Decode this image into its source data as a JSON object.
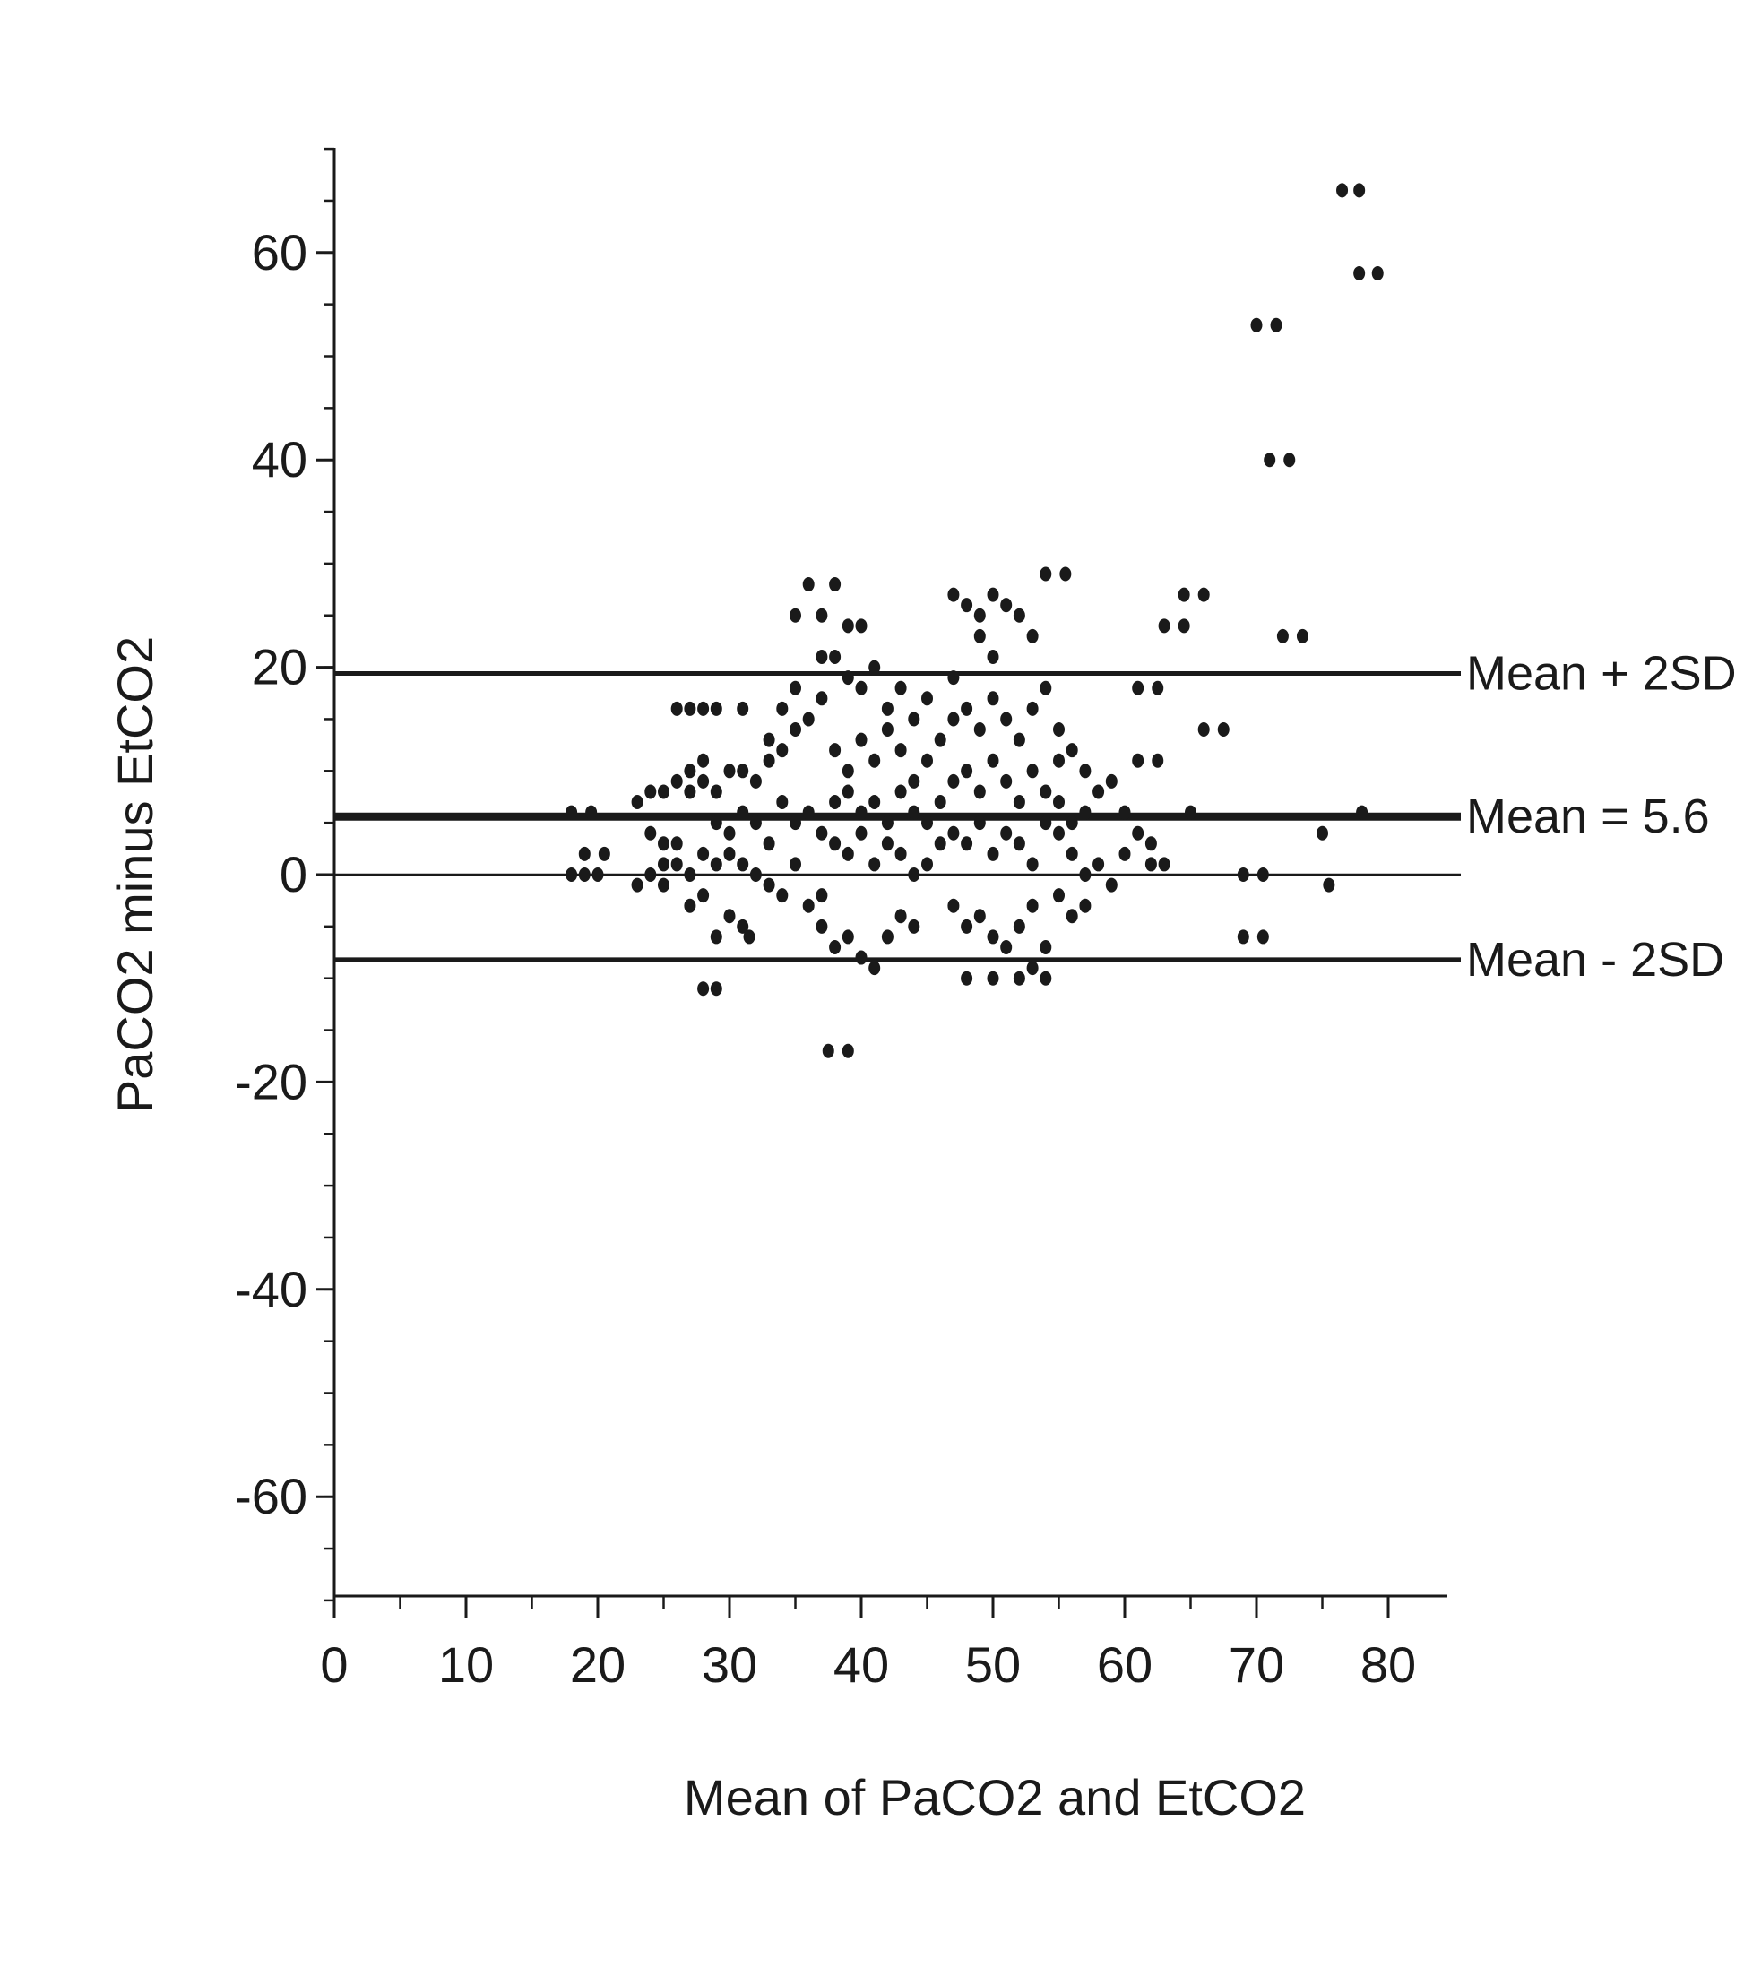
{
  "chart_data": {
    "type": "scatter",
    "title": "",
    "xlabel": "Mean of PaCO2 and EtCO2",
    "ylabel": "PaCO2 minus EtCO2",
    "xlim": [
      0,
      85
    ],
    "ylim": [
      -70,
      70
    ],
    "x_ticks": [
      0,
      10,
      20,
      30,
      40,
      50,
      60,
      70,
      80
    ],
    "y_ticks": [
      -60,
      -40,
      -20,
      0,
      20,
      40,
      60
    ],
    "grid": false,
    "colors": {
      "points": "#1a1a1a",
      "lines": "#1a1a1a"
    },
    "reference_lines": [
      {
        "label": "Mean + 2SD",
        "y": 19.4
      },
      {
        "label": "Mean = 5.6",
        "y": 5.6
      },
      {
        "label": "Mean - 2SD",
        "y": -8.2
      }
    ],
    "series": [
      {
        "points": [
          [
            18,
            6
          ],
          [
            19.5,
            6
          ],
          [
            20,
            0
          ],
          [
            19,
            0
          ],
          [
            18,
            0
          ],
          [
            19,
            2
          ],
          [
            20.5,
            2
          ],
          [
            23,
            7
          ],
          [
            24,
            8
          ],
          [
            25,
            8
          ],
          [
            26,
            16
          ],
          [
            27,
            16
          ],
          [
            28,
            16
          ],
          [
            29,
            16
          ],
          [
            31,
            16
          ],
          [
            26,
            9
          ],
          [
            27,
            8
          ],
          [
            27,
            10
          ],
          [
            28,
            9
          ],
          [
            28,
            11
          ],
          [
            29,
            8
          ],
          [
            30,
            10
          ],
          [
            31,
            10
          ],
          [
            24,
            4
          ],
          [
            25,
            3
          ],
          [
            26,
            3
          ],
          [
            24,
            0
          ],
          [
            25,
            1
          ],
          [
            26,
            1
          ],
          [
            27,
            0
          ],
          [
            28,
            2
          ],
          [
            29,
            1
          ],
          [
            23,
            -1
          ],
          [
            25,
            -1
          ],
          [
            27,
            -3
          ],
          [
            28,
            -2
          ],
          [
            29,
            -6
          ],
          [
            30,
            -4
          ],
          [
            31,
            -5
          ],
          [
            31.5,
            -6
          ],
          [
            28,
            -11
          ],
          [
            29,
            -11
          ],
          [
            29,
            5
          ],
          [
            30,
            4
          ],
          [
            31,
            6
          ],
          [
            32,
            5
          ],
          [
            33,
            3
          ],
          [
            34,
            7
          ],
          [
            35,
            5
          ],
          [
            36,
            6
          ],
          [
            37,
            4
          ],
          [
            30,
            2
          ],
          [
            31,
            1
          ],
          [
            32,
            0
          ],
          [
            33,
            -1
          ],
          [
            34,
            -2
          ],
          [
            35,
            1
          ],
          [
            36,
            -3
          ],
          [
            37,
            -2
          ],
          [
            32,
            9
          ],
          [
            33,
            11
          ],
          [
            34,
            12
          ],
          [
            35,
            14
          ],
          [
            36,
            15
          ],
          [
            37,
            17
          ],
          [
            35,
            18
          ],
          [
            33,
            13
          ],
          [
            34,
            16
          ],
          [
            35,
            25
          ],
          [
            36,
            28
          ],
          [
            37,
            25
          ],
          [
            38,
            28
          ],
          [
            37,
            21
          ],
          [
            38,
            21
          ],
          [
            39,
            19
          ],
          [
            39,
            24
          ],
          [
            40,
            24
          ],
          [
            38,
            12
          ],
          [
            39,
            10
          ],
          [
            40,
            13
          ],
          [
            41,
            11
          ],
          [
            42,
            14
          ],
          [
            43,
            12
          ],
          [
            44,
            9
          ],
          [
            45,
            11
          ],
          [
            38,
            7
          ],
          [
            39,
            8
          ],
          [
            40,
            6
          ],
          [
            41,
            7
          ],
          [
            42,
            5
          ],
          [
            43,
            8
          ],
          [
            44,
            6
          ],
          [
            45,
            5
          ],
          [
            46,
            7
          ],
          [
            38,
            3
          ],
          [
            39,
            2
          ],
          [
            40,
            4
          ],
          [
            41,
            1
          ],
          [
            42,
            3
          ],
          [
            43,
            2
          ],
          [
            44,
            0
          ],
          [
            45,
            1
          ],
          [
            46,
            3
          ],
          [
            37,
            -5
          ],
          [
            38,
            -7
          ],
          [
            39,
            -6
          ],
          [
            40,
            -8
          ],
          [
            41,
            -9
          ],
          [
            42,
            -6
          ],
          [
            43,
            -4
          ],
          [
            44,
            -5
          ],
          [
            37.5,
            -17
          ],
          [
            39,
            -17
          ],
          [
            40,
            18
          ],
          [
            41,
            20
          ],
          [
            42,
            16
          ],
          [
            43,
            18
          ],
          [
            44,
            15
          ],
          [
            45,
            17
          ],
          [
            46,
            13
          ],
          [
            47,
            19
          ],
          [
            47,
            27
          ],
          [
            48,
            26
          ],
          [
            49,
            25
          ],
          [
            50,
            27
          ],
          [
            51,
            26
          ],
          [
            52,
            25
          ],
          [
            53,
            23
          ],
          [
            49,
            23
          ],
          [
            50,
            21
          ],
          [
            47,
            15
          ],
          [
            48,
            16
          ],
          [
            49,
            14
          ],
          [
            50,
            17
          ],
          [
            51,
            15
          ],
          [
            52,
            13
          ],
          [
            53,
            16
          ],
          [
            54,
            18
          ],
          [
            47,
            9
          ],
          [
            48,
            10
          ],
          [
            49,
            8
          ],
          [
            50,
            11
          ],
          [
            51,
            9
          ],
          [
            52,
            7
          ],
          [
            53,
            10
          ],
          [
            54,
            8
          ],
          [
            55,
            11
          ],
          [
            47,
            4
          ],
          [
            48,
            3
          ],
          [
            49,
            5
          ],
          [
            50,
            2
          ],
          [
            51,
            4
          ],
          [
            52,
            3
          ],
          [
            53,
            1
          ],
          [
            54,
            5
          ],
          [
            55,
            4
          ],
          [
            47,
            -3
          ],
          [
            48,
            -5
          ],
          [
            49,
            -4
          ],
          [
            50,
            -6
          ],
          [
            51,
            -7
          ],
          [
            52,
            -5
          ],
          [
            53,
            -9
          ],
          [
            54,
            -7
          ],
          [
            48,
            -10
          ],
          [
            50,
            -10
          ],
          [
            52,
            -10
          ],
          [
            54,
            -10
          ],
          [
            54,
            29
          ],
          [
            55.5,
            29
          ],
          [
            55,
            14
          ],
          [
            56,
            12
          ],
          [
            57,
            10
          ],
          [
            58,
            8
          ],
          [
            59,
            9
          ],
          [
            60,
            6
          ],
          [
            55,
            7
          ],
          [
            56,
            5
          ],
          [
            57,
            6
          ],
          [
            56,
            2
          ],
          [
            57,
            0
          ],
          [
            58,
            1
          ],
          [
            59,
            -1
          ],
          [
            60,
            2
          ],
          [
            61,
            4
          ],
          [
            62,
            3
          ],
          [
            63,
            1
          ],
          [
            62,
            1
          ],
          [
            55,
            -2
          ],
          [
            56,
            -4
          ],
          [
            53,
            -3
          ],
          [
            57,
            -3
          ],
          [
            61,
            11
          ],
          [
            62.5,
            11
          ],
          [
            61,
            18
          ],
          [
            62.5,
            18
          ],
          [
            63,
            24
          ],
          [
            64.5,
            24
          ],
          [
            64.5,
            27
          ],
          [
            66,
            27
          ],
          [
            66,
            14
          ],
          [
            67.5,
            14
          ],
          [
            65,
            6
          ],
          [
            69,
            0
          ],
          [
            70.5,
            0
          ],
          [
            69,
            -6
          ],
          [
            70.5,
            -6
          ],
          [
            70,
            53
          ],
          [
            71.5,
            53
          ],
          [
            71,
            40
          ],
          [
            72.5,
            40
          ],
          [
            72,
            23
          ],
          [
            73.5,
            23
          ],
          [
            75,
            4
          ],
          [
            75.5,
            -1
          ],
          [
            78,
            6
          ],
          [
            76.5,
            66
          ],
          [
            77.8,
            66
          ],
          [
            77.8,
            58
          ],
          [
            79.2,
            58
          ]
        ]
      }
    ]
  }
}
